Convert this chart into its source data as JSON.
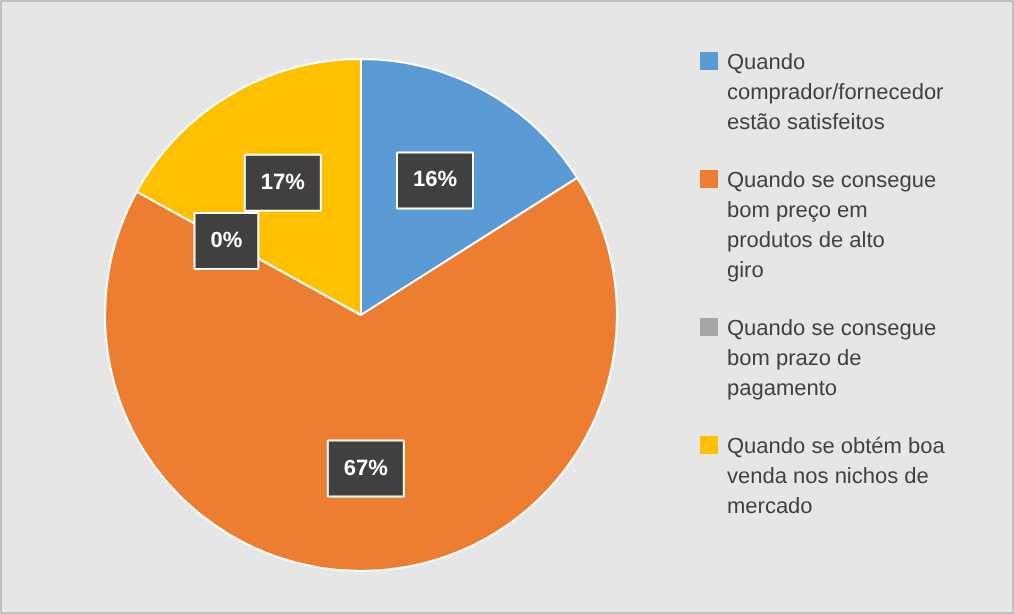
{
  "chart_data": {
    "type": "pie",
    "categories": [
      "Quando comprador/fornecedor estão satisfeitos",
      "Quando se consegue bom preço em produtos de alto giro",
      "Quando se consegue bom prazo de pagamento",
      "Quando se obtém boa venda nos nichos de mercado"
    ],
    "values": [
      16,
      67,
      0,
      17
    ],
    "colors": [
      "#5b9bd5",
      "#ed7d31",
      "#a5a5a5",
      "#ffc000"
    ],
    "value_labels": [
      "16%",
      "67%",
      "0%",
      "17%"
    ],
    "legend": "right"
  }
}
